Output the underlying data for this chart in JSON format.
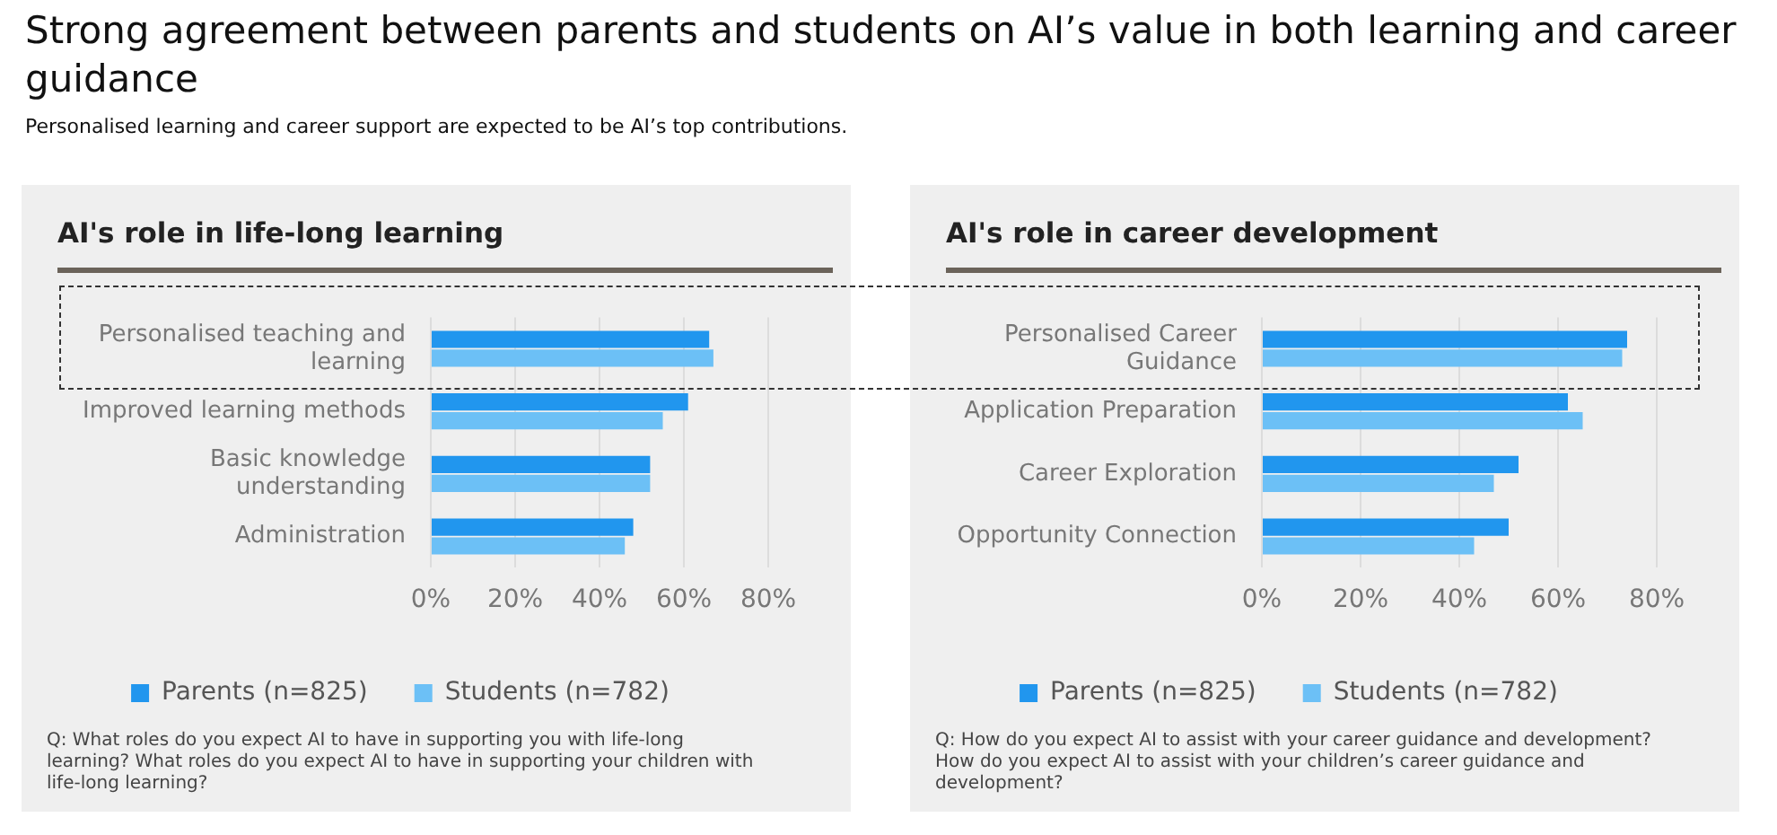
{
  "chart_data": [
    {
      "type": "bar",
      "orientation": "horizontal",
      "title": "AI's role in life-long learning",
      "categories": [
        "Personalised teaching and learning",
        "Improved learning methods",
        "Basic knowledge understanding",
        "Administration"
      ],
      "series": [
        {
          "name": "Parents (n=825)",
          "color": "#2196ee",
          "values": [
            66,
            61,
            52,
            48
          ]
        },
        {
          "name": "Students (n=782)",
          "color": "#6cc0f6",
          "values": [
            67,
            55,
            52,
            46
          ]
        }
      ],
      "xlim": [
        0,
        80
      ],
      "xticks": [
        {
          "value": 0,
          "label": "0%"
        },
        {
          "value": 20,
          "label": "20%"
        },
        {
          "value": 40,
          "label": "40%"
        },
        {
          "value": 60,
          "label": "60%"
        },
        {
          "value": 80,
          "label": "80%"
        }
      ],
      "grid": "x",
      "legend": "bottom",
      "annotations": [
        "Strong agreement between parents and students on AI’s value in both learning and career guidance",
        "Personalised learning and career support are expected to be AI’s top contributions.",
        "Q: What roles do you expect AI to have in supporting you with life-long learning? What roles do you expect AI to have in supporting your children with life-long learning?"
      ]
    },
    {
      "type": "bar",
      "orientation": "horizontal",
      "title": "AI's role in career development",
      "categories": [
        "Personalised Career Guidance",
        "Application Preparation",
        "Career Exploration",
        "Opportunity Connection"
      ],
      "series": [
        {
          "name": "Parents (n=825)",
          "color": "#2196ee",
          "values": [
            74,
            62,
            52,
            50
          ]
        },
        {
          "name": "Students (n=782)",
          "color": "#6cc0f6",
          "values": [
            73,
            65,
            47,
            43
          ]
        }
      ],
      "xlim": [
        0,
        80
      ],
      "xticks": [
        {
          "value": 0,
          "label": "0%"
        },
        {
          "value": 20,
          "label": "20%"
        },
        {
          "value": 40,
          "label": "40%"
        },
        {
          "value": 60,
          "label": "60%"
        },
        {
          "value": 80,
          "label": "80%"
        }
      ],
      "grid": "x",
      "legend": "bottom",
      "annotations": [
        "Q: How do you expect AI to assist with your career guidance and development? How do you expect AI to assist with your children’s career guidance and development?"
      ]
    }
  ]
}
